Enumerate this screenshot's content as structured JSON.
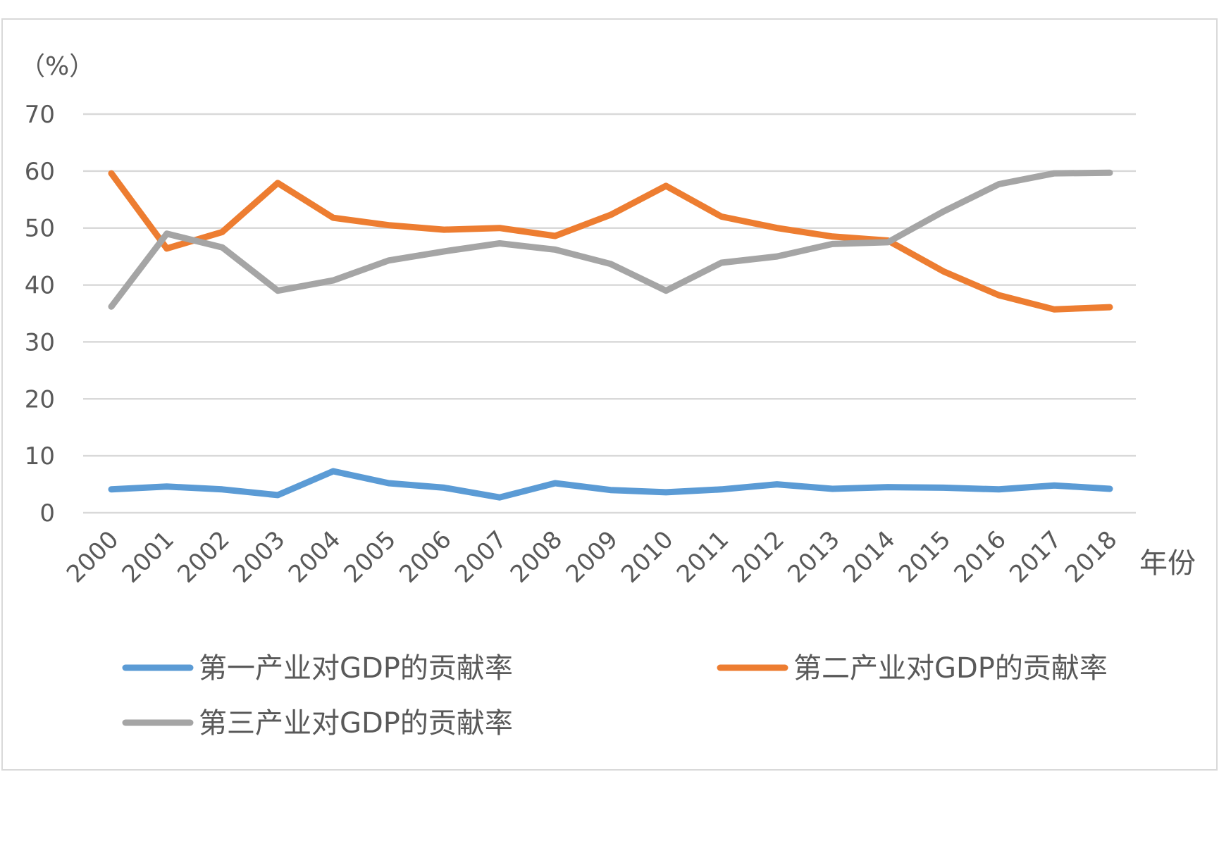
{
  "chart_data": {
    "type": "line",
    "y_unit_label": "（%）",
    "x_axis_title": "年份",
    "ylim": [
      0,
      70
    ],
    "y_ticks": [
      "70",
      "60",
      "50",
      "40",
      "30",
      "20",
      "10",
      "0"
    ],
    "y_tick_values": [
      70,
      60,
      50,
      40,
      30,
      20,
      10,
      0
    ],
    "grid": true,
    "legend_position": "bottom",
    "categories": [
      "2000",
      "2001",
      "2002",
      "2003",
      "2004",
      "2005",
      "2006",
      "2007",
      "2008",
      "2009",
      "2010",
      "2011",
      "2012",
      "2013",
      "2014",
      "2015",
      "2016",
      "2017",
      "2018"
    ],
    "series": [
      {
        "name": "第一产业对GDP的贡献率",
        "color": "#5b9bd5",
        "values": [
          4.1,
          4.6,
          4.1,
          3.1,
          7.3,
          5.2,
          4.4,
          2.7,
          5.2,
          4.0,
          3.6,
          4.1,
          5.0,
          4.2,
          4.5,
          4.4,
          4.1,
          4.8,
          4.2
        ]
      },
      {
        "name": "第二产业对GDP的贡献率",
        "color": "#ed7d31",
        "values": [
          59.6,
          46.4,
          49.3,
          57.9,
          51.8,
          50.5,
          49.7,
          50.0,
          48.6,
          52.3,
          57.4,
          52.0,
          50.0,
          48.5,
          47.8,
          42.4,
          38.2,
          35.7,
          36.1
        ]
      },
      {
        "name": "第三产业对GDP的贡献率",
        "color": "#a5a5a5",
        "values": [
          36.2,
          49.0,
          46.6,
          39.0,
          40.8,
          44.3,
          45.9,
          47.3,
          46.2,
          43.7,
          39.0,
          43.9,
          45.0,
          47.2,
          47.5,
          52.9,
          57.7,
          59.6,
          59.7
        ]
      }
    ]
  }
}
